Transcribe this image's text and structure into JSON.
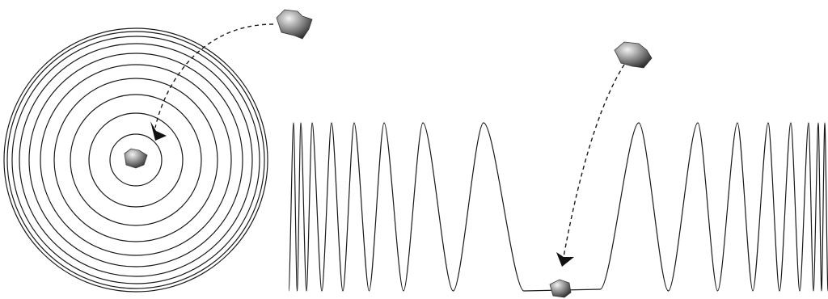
{
  "diagram": {
    "panels": [
      {
        "name": "concentric-rings-panel",
        "ring_count": 10,
        "arrow": "dashed-curved",
        "objects": [
          "rock-icon",
          "rock-icon"
        ]
      },
      {
        "name": "wave-panel",
        "arrow": "dashed-curved",
        "objects": [
          "rock-icon",
          "rock-icon"
        ]
      }
    ],
    "colors": {
      "line": "#1a1a1a",
      "rock_light": "#d8d8d8",
      "rock_mid": "#8a8a8a",
      "rock_dark": "#2e2e2e",
      "background": "#ffffff"
    }
  }
}
